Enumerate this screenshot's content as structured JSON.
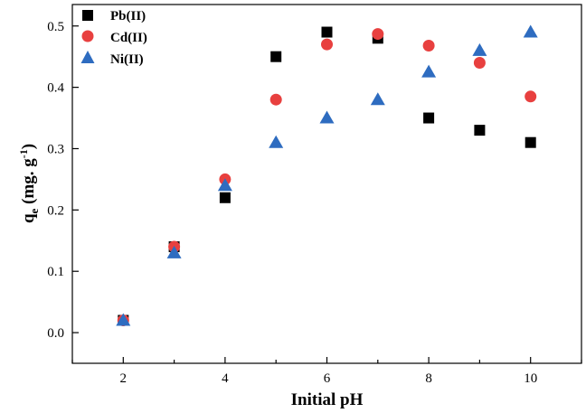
{
  "chart_data": {
    "type": "scatter",
    "title": "",
    "xlabel": "Initial pH",
    "ylabel": {
      "main": "q",
      "sub": "e",
      "unit_text": " (mg. g",
      "sup": "-1",
      "close": ")"
    },
    "xlim": [
      1.0,
      11.0
    ],
    "ylim": [
      -0.05,
      0.535
    ],
    "xticks": [
      2,
      4,
      6,
      8,
      10
    ],
    "yticks": [
      0.0,
      0.1,
      0.2,
      0.3,
      0.4,
      0.5
    ],
    "ytick_labels": [
      "0.0",
      "0.1",
      "0.2",
      "0.3",
      "0.4",
      "0.5"
    ],
    "legend_position": "top-left",
    "series": [
      {
        "name": "Pb(II)",
        "marker": "square",
        "color": "#000000",
        "x": [
          2,
          3,
          4,
          5,
          6,
          7,
          8,
          9,
          10
        ],
        "y": [
          0.02,
          0.14,
          0.22,
          0.45,
          0.49,
          0.48,
          0.35,
          0.33,
          0.31
        ]
      },
      {
        "name": "Cd(II)",
        "marker": "circle",
        "color": "#e8403f",
        "x": [
          2,
          3,
          4,
          5,
          6,
          7,
          8,
          9,
          10
        ],
        "y": [
          0.02,
          0.14,
          0.25,
          0.38,
          0.47,
          0.487,
          0.468,
          0.44,
          0.385
        ]
      },
      {
        "name": "Ni(II)",
        "marker": "triangle",
        "color": "#2e6cc0",
        "x": [
          2,
          3,
          4,
          5,
          6,
          7,
          8,
          9,
          10
        ],
        "y": [
          0.02,
          0.13,
          0.24,
          0.31,
          0.35,
          0.38,
          0.425,
          0.46,
          0.49
        ]
      }
    ]
  }
}
